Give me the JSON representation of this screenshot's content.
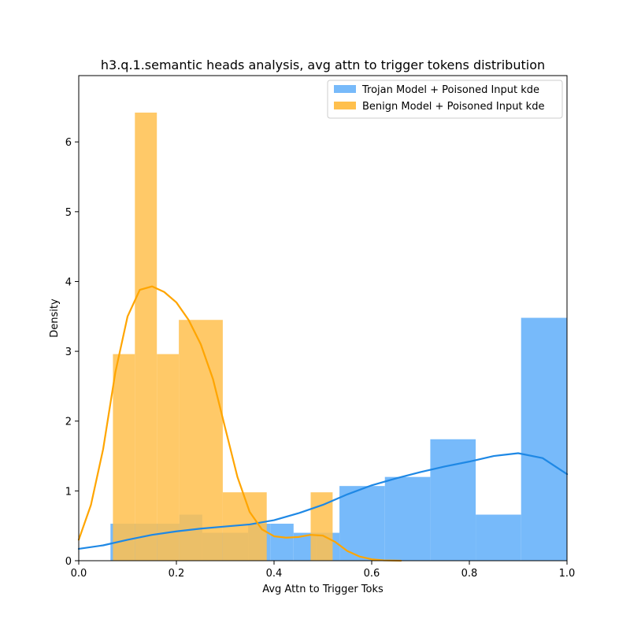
{
  "chart_data": {
    "type": "histogram",
    "title": "h3.q.1.semantic heads analysis, avg attn to trigger tokens distribution",
    "xlabel": "Avg Attn to Trigger Toks",
    "ylabel": "Density",
    "xlim": [
      0.0,
      1.0
    ],
    "ylim": [
      0,
      6.95
    ],
    "xticks": [
      "0.0",
      "0.2",
      "0.4",
      "0.6",
      "0.8",
      "1.0"
    ],
    "yticks": [
      "0",
      "1",
      "2",
      "3",
      "4",
      "5",
      "6"
    ],
    "grid": false,
    "legend_placement": "top-right",
    "series": [
      {
        "name": "Trojan Model + Poisoned Input kde",
        "color": "#1e88e5",
        "bar_color": "#77bafa",
        "bins": [
          {
            "x0": 0.065,
            "x1": 0.112,
            "density": 0.53
          },
          {
            "x0": 0.112,
            "x1": 0.159,
            "density": 0.53
          },
          {
            "x0": 0.159,
            "x1": 0.206,
            "density": 0.53
          },
          {
            "x0": 0.206,
            "x1": 0.253,
            "density": 0.66
          },
          {
            "x0": 0.253,
            "x1": 0.3,
            "density": 0.4
          },
          {
            "x0": 0.3,
            "x1": 0.347,
            "density": 0.4
          },
          {
            "x0": 0.347,
            "x1": 0.393,
            "density": 0.53
          },
          {
            "x0": 0.393,
            "x1": 0.44,
            "density": 0.53
          },
          {
            "x0": 0.44,
            "x1": 0.487,
            "density": 0.4
          },
          {
            "x0": 0.487,
            "x1": 0.534,
            "density": 0.4
          },
          {
            "x0": 0.534,
            "x1": 0.627,
            "density": 1.07
          },
          {
            "x0": 0.627,
            "x1": 0.72,
            "density": 1.2
          },
          {
            "x0": 0.72,
            "x1": 0.813,
            "density": 1.74
          },
          {
            "x0": 0.813,
            "x1": 0.906,
            "density": 0.66
          },
          {
            "x0": 0.906,
            "x1": 1.0,
            "density": 3.48
          }
        ],
        "kde": {
          "x": [
            0.0,
            0.05,
            0.1,
            0.15,
            0.2,
            0.25,
            0.3,
            0.35,
            0.4,
            0.45,
            0.5,
            0.55,
            0.6,
            0.65,
            0.7,
            0.75,
            0.8,
            0.85,
            0.9,
            0.95,
            1.0
          ],
          "y": [
            0.17,
            0.22,
            0.3,
            0.37,
            0.42,
            0.46,
            0.49,
            0.52,
            0.58,
            0.68,
            0.8,
            0.95,
            1.08,
            1.18,
            1.27,
            1.35,
            1.42,
            1.5,
            1.54,
            1.47,
            1.24
          ]
        }
      },
      {
        "name": "Benign Model + Poisoned Input kde",
        "color": "#ffa500",
        "bar_color": "#ffc04d",
        "bins": [
          {
            "x0": 0.07,
            "x1": 0.115,
            "density": 2.96
          },
          {
            "x0": 0.115,
            "x1": 0.16,
            "density": 6.42
          },
          {
            "x0": 0.16,
            "x1": 0.205,
            "density": 2.96
          },
          {
            "x0": 0.205,
            "x1": 0.295,
            "density": 3.45
          },
          {
            "x0": 0.295,
            "x1": 0.385,
            "density": 0.98
          },
          {
            "x0": 0.475,
            "x1": 0.52,
            "density": 0.98
          }
        ],
        "kde": {
          "x": [
            0.0,
            0.025,
            0.05,
            0.075,
            0.1,
            0.125,
            0.15,
            0.175,
            0.2,
            0.225,
            0.25,
            0.275,
            0.3,
            0.325,
            0.35,
            0.375,
            0.4,
            0.425,
            0.45,
            0.475,
            0.5,
            0.525,
            0.55,
            0.575,
            0.6,
            0.625,
            0.66
          ],
          "y": [
            0.3,
            0.8,
            1.6,
            2.7,
            3.5,
            3.88,
            3.93,
            3.85,
            3.7,
            3.45,
            3.1,
            2.6,
            1.9,
            1.2,
            0.7,
            0.45,
            0.35,
            0.33,
            0.34,
            0.37,
            0.36,
            0.27,
            0.14,
            0.06,
            0.02,
            0.005,
            0.0
          ]
        }
      }
    ]
  }
}
